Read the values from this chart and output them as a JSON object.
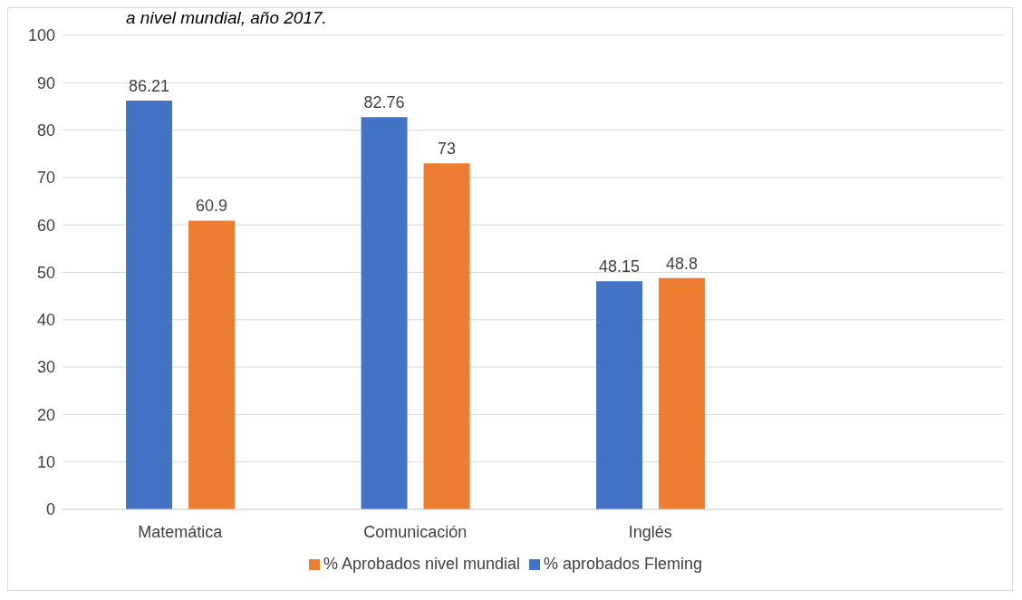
{
  "chart_data": {
    "type": "bar",
    "title": "a nivel mundial, año 2017.",
    "categories": [
      "Matemática",
      "Comunicación",
      "Inglés",
      null
    ],
    "series": [
      {
        "name": "% aprobados Fleming",
        "color": "#4472c4",
        "values": [
          86.21,
          82.76,
          48.15,
          null
        ]
      },
      {
        "name": "% Aprobados nivel mundial",
        "color": "#ed7d31",
        "values": [
          60.9,
          73,
          48.8,
          null
        ]
      }
    ],
    "ylim": [
      0,
      100
    ],
    "yticks": [
      0,
      10,
      20,
      30,
      40,
      50,
      60,
      70,
      80,
      90,
      100
    ],
    "grid": "y",
    "legend": "bottom",
    "data_labels": true
  }
}
